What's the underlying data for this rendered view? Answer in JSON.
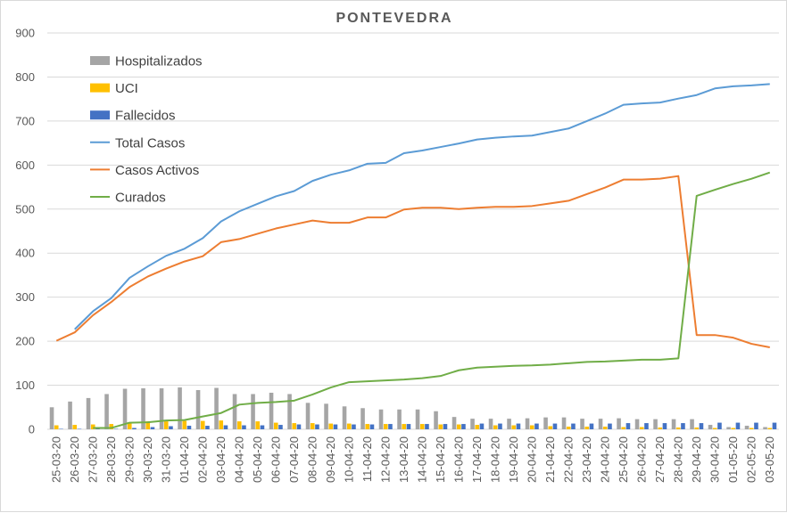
{
  "chart_data": {
    "type": "bar",
    "title": "PONTEVEDRA",
    "xlabel": "",
    "ylabel": "",
    "ylim": [
      0,
      900
    ],
    "yticks": [
      0,
      100,
      200,
      300,
      400,
      500,
      600,
      700,
      800,
      900
    ],
    "grid": "horizontal",
    "legend_position": "top-left",
    "categories": [
      "25-03-20",
      "26-03-20",
      "27-03-20",
      "28-03-20",
      "29-03-20",
      "30-03-20",
      "31-03-20",
      "01-04-20",
      "02-04-20",
      "03-04-20",
      "04-04-20",
      "05-04-20",
      "06-04-20",
      "07-04-20",
      "08-04-20",
      "09-04-20",
      "10-04-20",
      "11-04-20",
      "12-04-20",
      "13-04-20",
      "14-04-20",
      "15-04-20",
      "16-04-20",
      "17-04-20",
      "18-04-20",
      "19-04-20",
      "20-04-20",
      "21-04-20",
      "22-04-20",
      "23-04-20",
      "24-04-20",
      "25-04-20",
      "26-04-20",
      "27-04-20",
      "28-04-20",
      "29-04-20",
      "30-04-20",
      "01-05-20",
      "02-05-20",
      "03-05-20"
    ],
    "bar_series": [
      {
        "name": "Hospitalizados",
        "color": "#a5a5a5",
        "values": [
          50,
          63,
          71,
          80,
          92,
          93,
          93,
          95,
          89,
          94,
          80,
          80,
          83,
          80,
          60,
          58,
          52,
          48,
          45,
          45,
          45,
          41,
          28,
          24,
          24,
          24,
          25,
          27,
          27,
          24,
          24,
          25,
          23,
          23,
          23,
          23,
          10,
          5,
          8,
          5
        ]
      },
      {
        "name": "UCI",
        "color": "#ffc000",
        "values": [
          9,
          10,
          11,
          12,
          15,
          18,
          18,
          19,
          19,
          20,
          18,
          18,
          15,
          14,
          14,
          13,
          13,
          12,
          12,
          12,
          12,
          11,
          11,
          10,
          9,
          9,
          9,
          7,
          6,
          6,
          6,
          5,
          5,
          4,
          4,
          4,
          3,
          3,
          3,
          3
        ]
      },
      {
        "name": "Fallecidos",
        "color": "#4472c4",
        "values": [
          1,
          1,
          1,
          1,
          3,
          5,
          7,
          8,
          8,
          9,
          9,
          9,
          10,
          11,
          11,
          11,
          11,
          11,
          12,
          12,
          12,
          12,
          12,
          13,
          13,
          13,
          13,
          13,
          13,
          13,
          13,
          14,
          14,
          14,
          14,
          14,
          15,
          15,
          15,
          15
        ]
      }
    ],
    "line_series": [
      {
        "name": "Total Casos",
        "color": "#5b9bd5",
        "values": [
          null,
          227,
          268,
          298,
          344,
          370,
          394,
          410,
          434,
          472,
          495,
          512,
          529,
          541,
          564,
          578,
          588,
          603,
          605,
          627,
          633,
          641,
          649,
          658,
          662,
          665,
          667,
          675,
          683,
          700,
          717,
          737,
          740,
          742,
          751,
          759,
          774,
          779,
          781,
          784
        ]
      },
      {
        "name": "Casos Activos",
        "color": "#ed7d31",
        "values": [
          201,
          220,
          259,
          289,
          323,
          347,
          365,
          381,
          393,
          425,
          432,
          444,
          456,
          465,
          474,
          469,
          469,
          481,
          481,
          499,
          503,
          503,
          500,
          503,
          505,
          505,
          507,
          513,
          519,
          534,
          549,
          567,
          567,
          569,
          575,
          214,
          214,
          208,
          194,
          186
        ]
      },
      {
        "name": "Curados",
        "color": "#70ad47",
        "values": [
          null,
          null,
          3,
          3,
          15,
          16,
          20,
          21,
          29,
          37,
          56,
          60,
          62,
          65,
          79,
          95,
          107,
          109,
          111,
          113,
          116,
          121,
          134,
          140,
          142,
          144,
          145,
          147,
          150,
          153,
          154,
          156,
          158,
          158,
          161,
          530,
          544,
          557,
          569,
          583
        ]
      }
    ]
  }
}
